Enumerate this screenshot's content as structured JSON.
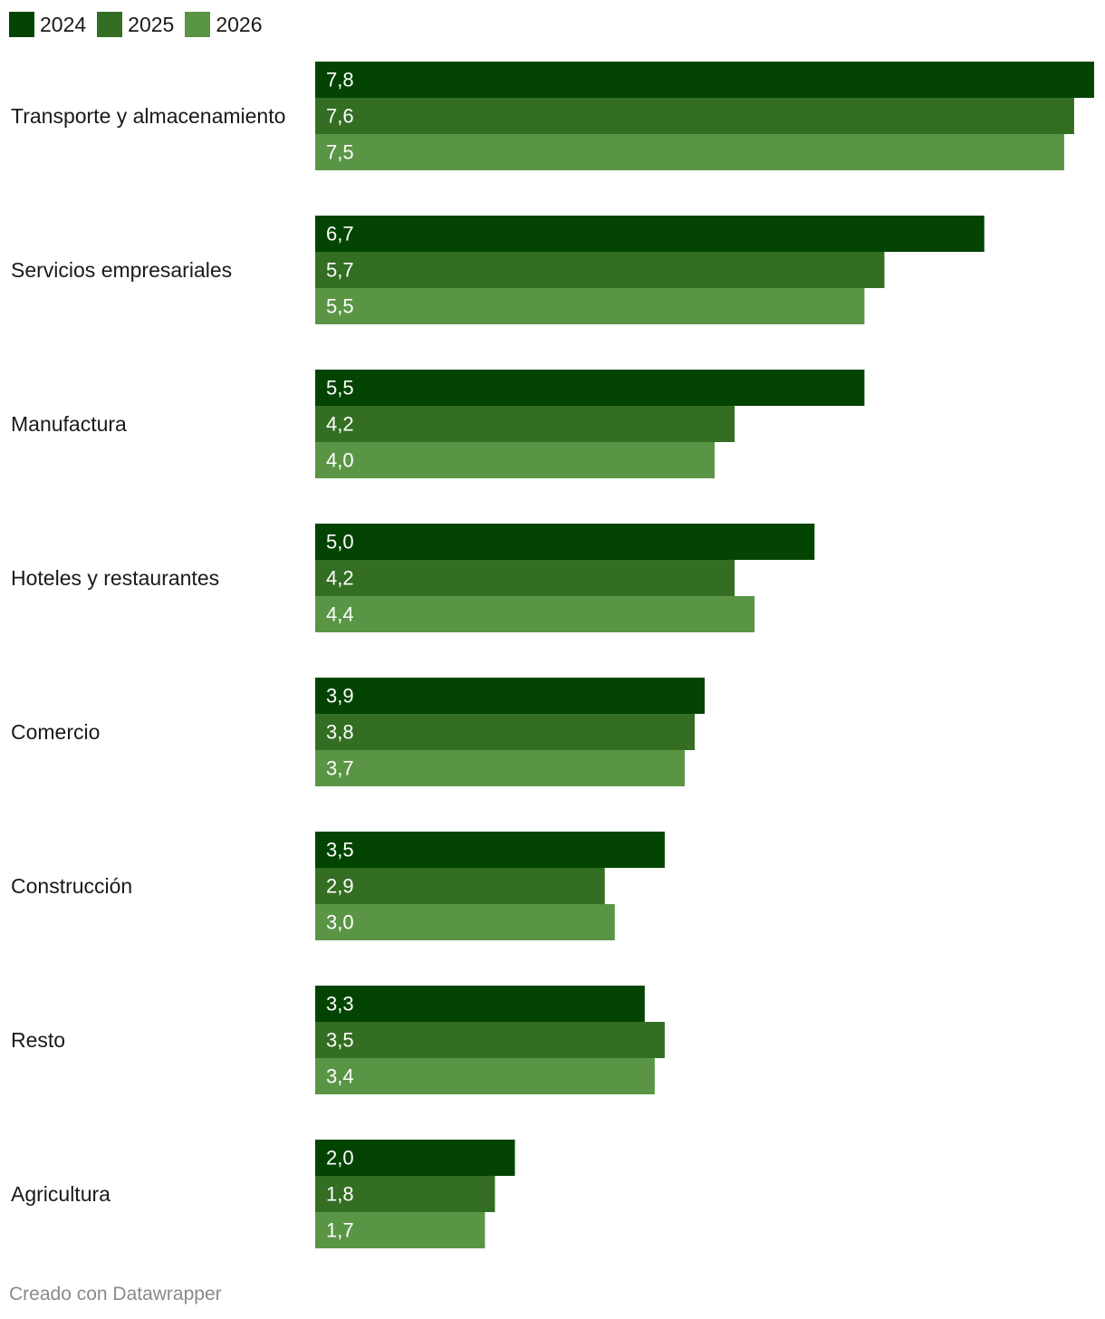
{
  "chart_data": {
    "type": "bar",
    "orientation": "horizontal",
    "categories": [
      "Transporte y almacenamiento",
      "Servicios empresariales",
      "Manufactura",
      "Hoteles y restaurantes",
      "Comercio",
      "Construcción",
      "Resto",
      "Agricultura"
    ],
    "series": [
      {
        "name": "2024",
        "color": "#034402",
        "values": [
          7.8,
          6.7,
          5.5,
          5.0,
          3.9,
          3.5,
          3.3,
          2.0
        ]
      },
      {
        "name": "2025",
        "color": "#336e23",
        "values": [
          7.6,
          5.7,
          4.2,
          4.2,
          3.8,
          2.9,
          3.5,
          1.8
        ]
      },
      {
        "name": "2026",
        "color": "#5a9546",
        "values": [
          7.5,
          5.5,
          4.0,
          4.4,
          3.7,
          3.0,
          3.4,
          1.7
        ]
      }
    ],
    "data_labels": [
      [
        "7,8",
        "6,7",
        "5,5",
        "5,0",
        "3,9",
        "3,5",
        "3,3",
        "2,0"
      ],
      [
        "7,6",
        "5,7",
        "4,2",
        "4,2",
        "3,8",
        "2,9",
        "3,5",
        "1,8"
      ],
      [
        "7,5",
        "5,5",
        "4,0",
        "4,4",
        "3,7",
        "3,0",
        "3,4",
        "1,7"
      ]
    ],
    "xlim": [
      0,
      7.8
    ],
    "legend_position": "top-left",
    "grid": false
  },
  "footer": {
    "credit": "Creado con Datawrapper"
  }
}
